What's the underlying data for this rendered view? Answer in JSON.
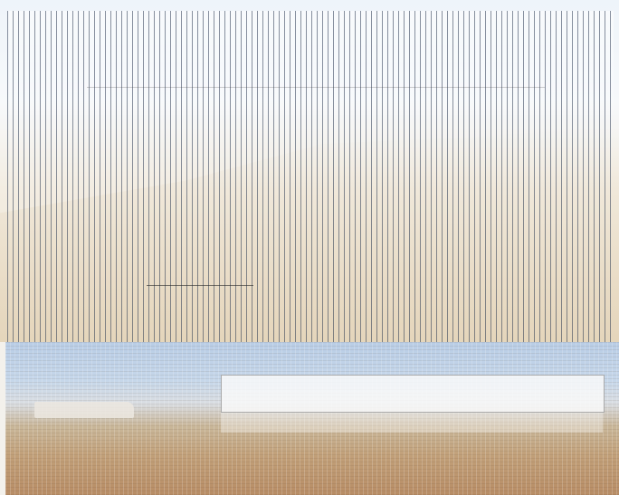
{
  "page": {
    "heading": "",
    "banner_text": ""
  },
  "colors": {
    "sky": "#b9cde6",
    "sand": "#c19f78",
    "banner_bg": "#fafafa"
  }
}
